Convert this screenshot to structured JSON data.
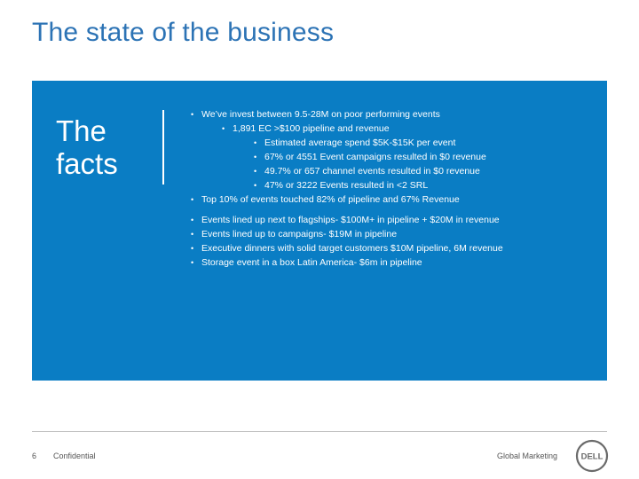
{
  "slide": {
    "title": "The state of the business"
  },
  "panel": {
    "heading_line1": "The",
    "heading_line2": "facts",
    "bullets": [
      {
        "level": 1,
        "text": "We’ve invest between 9.5-28M on poor performing events"
      },
      {
        "level": 2,
        "text": "1,891 EC >$100 pipeline and revenue"
      },
      {
        "level": 3,
        "text": "Estimated average spend $5K-$15K per event"
      },
      {
        "level": 3,
        "text": "67% or 4551 Event campaigns resulted in $0 revenue"
      },
      {
        "level": 3,
        "text": "49.7% or 657 channel events resulted in $0 revenue"
      },
      {
        "level": 3,
        "text": "47% or 3222 Events resulted in <2 SRL"
      },
      {
        "level": 1,
        "text": "Top 10% of events touched 82% of pipeline and 67% Revenue"
      },
      {
        "level": 1,
        "text": "Events lined up next to flagships- $100M+ in pipeline + $20M in revenue"
      },
      {
        "level": 1,
        "text": "Events lined up to campaigns- $19M in pipeline"
      },
      {
        "level": 1,
        "text": "Executive dinners with solid target customers $10M pipeline, 6M revenue"
      },
      {
        "level": 1,
        "text": "Storage event in a box Latin America- $6m in pipeline"
      }
    ],
    "bullet_glyph": "•"
  },
  "footer": {
    "page_number": "6",
    "confidential": "Confidential",
    "department": "Global Marketing",
    "logo_text": "DELL"
  },
  "colors": {
    "title": "#2c73b5",
    "panel_background": "#0a7dc4",
    "panel_text": "#ffffff",
    "footer_text": "#555555"
  }
}
